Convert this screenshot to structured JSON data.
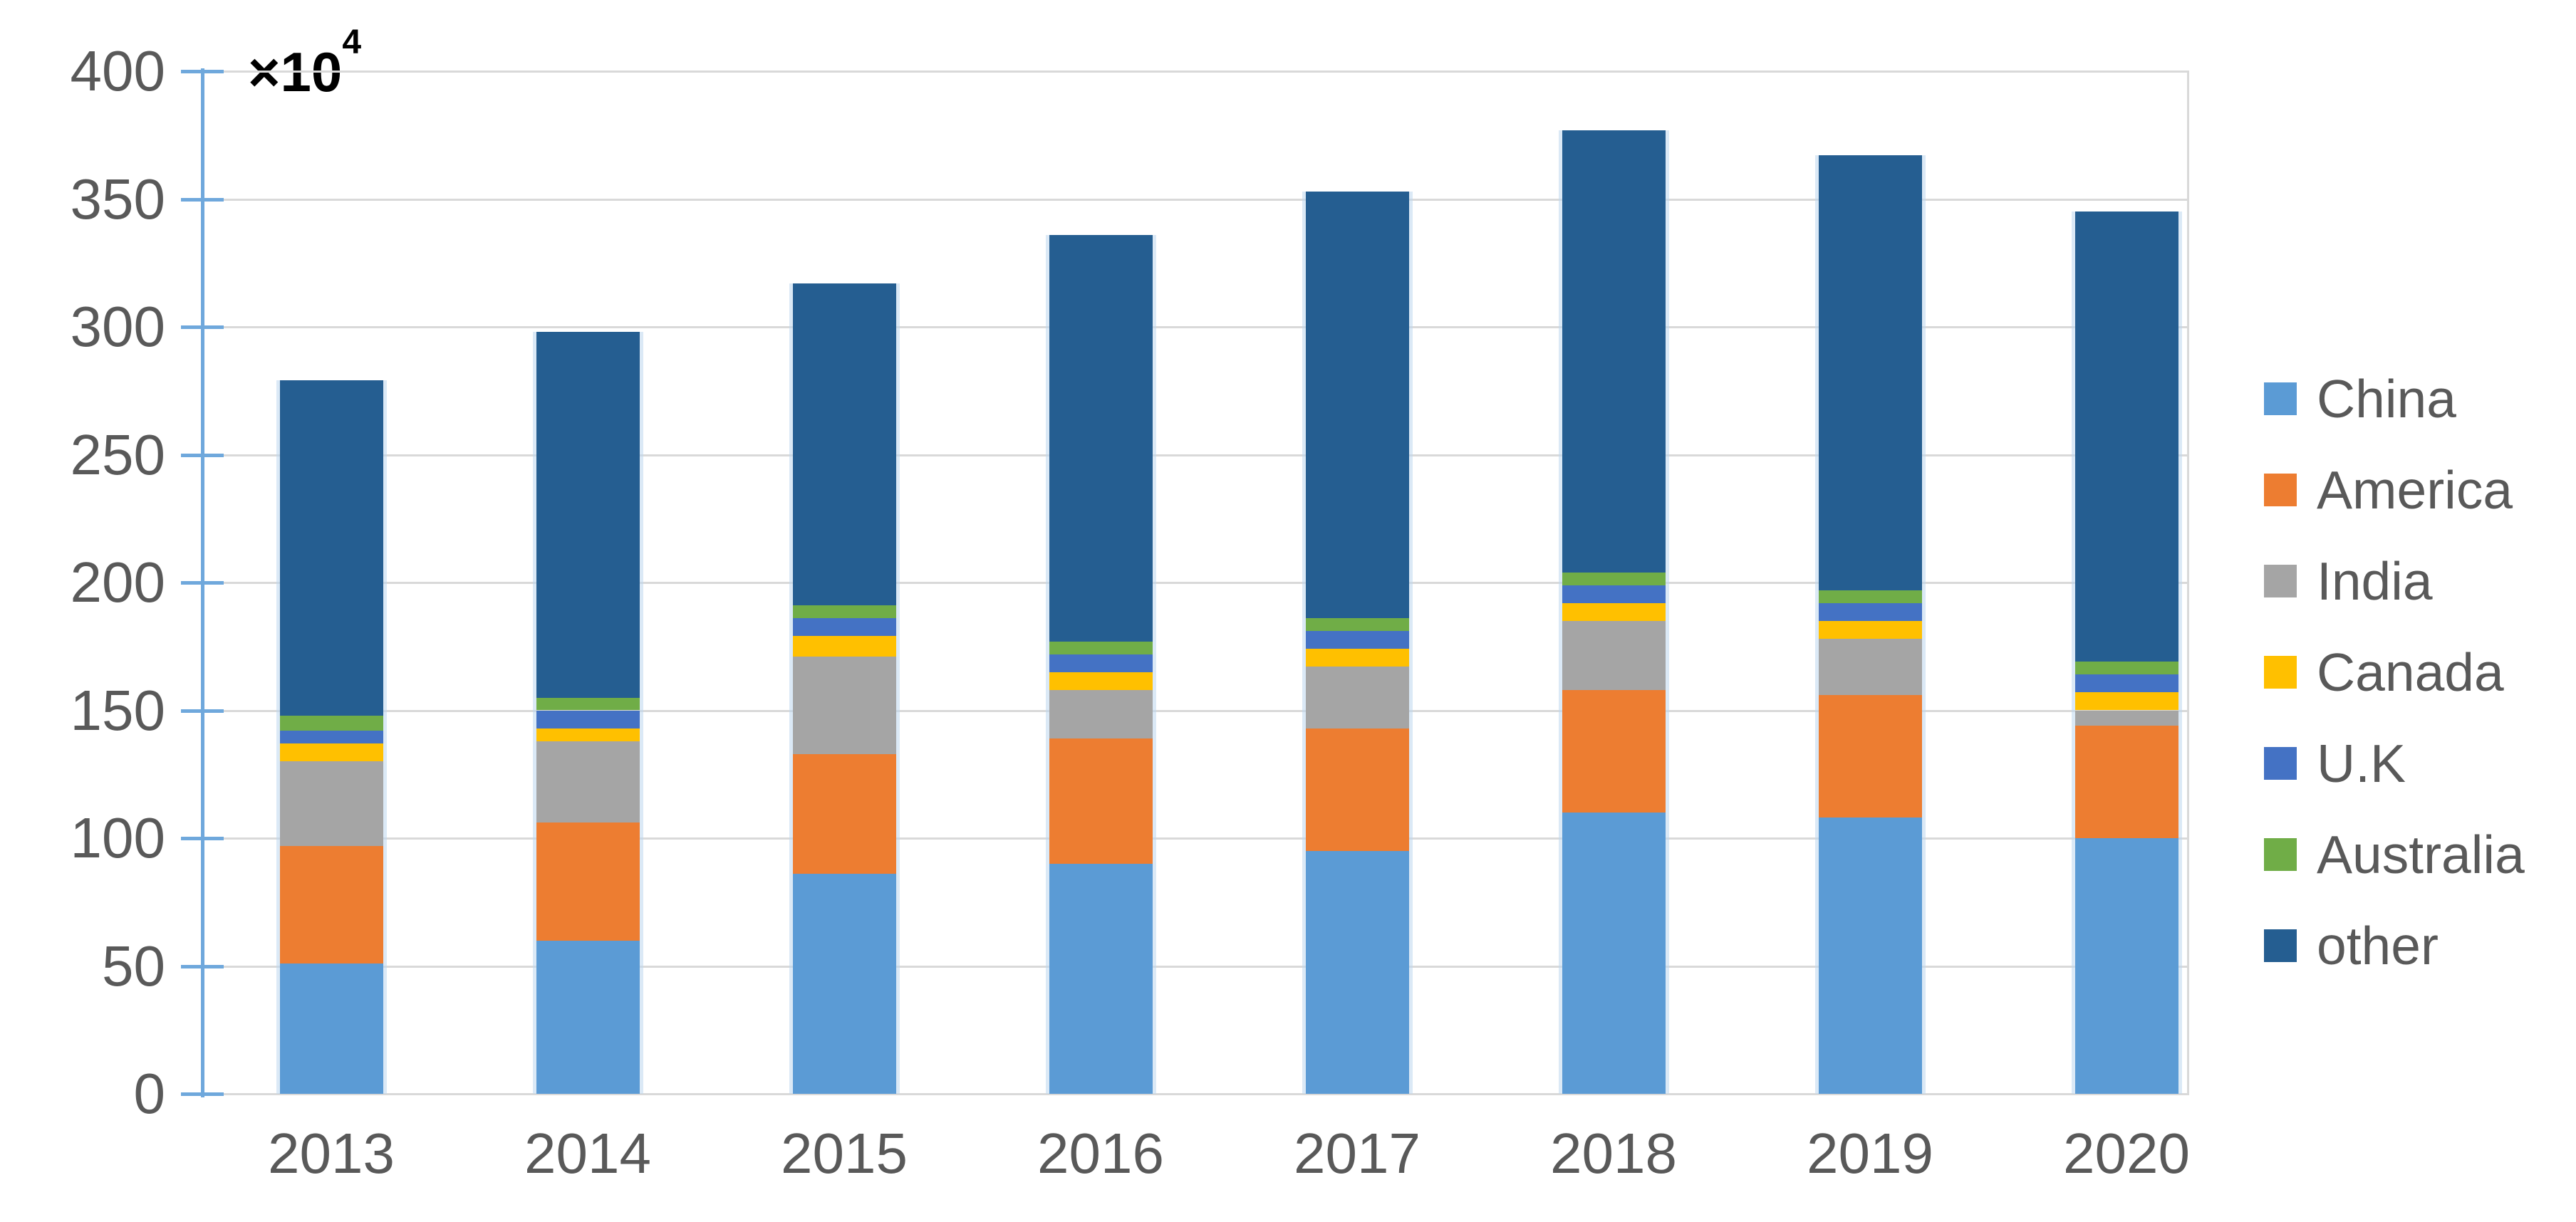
{
  "chart_data": {
    "type": "bar",
    "stacked": true,
    "title": "",
    "xlabel": "",
    "ylabel": "",
    "unit_note": "values are in units of 10^4",
    "categories": [
      "2013",
      "2014",
      "2015",
      "2016",
      "2017",
      "2018",
      "2019",
      "2020"
    ],
    "series": [
      {
        "name": "China",
        "color": "#5B9BD5",
        "values": [
          51,
          60,
          86,
          90,
          95,
          110,
          108,
          100
        ]
      },
      {
        "name": "America",
        "color": "#ED7D31",
        "values": [
          46,
          46,
          47,
          49,
          48,
          48,
          48,
          44
        ]
      },
      {
        "name": "India",
        "color": "#A5A5A5",
        "values": [
          33,
          32,
          38,
          19,
          24,
          27,
          22,
          6
        ]
      },
      {
        "name": "Canada",
        "color": "#FFC000",
        "values": [
          7,
          5,
          8,
          7,
          7,
          7,
          7,
          7
        ]
      },
      {
        "name": "U.K",
        "color": "#4472C4",
        "values": [
          5,
          7,
          7,
          7,
          7,
          7,
          7,
          7
        ]
      },
      {
        "name": "Australia",
        "color": "#70AD47",
        "values": [
          6,
          5,
          5,
          5,
          5,
          5,
          5,
          5
        ]
      },
      {
        "name": "other",
        "color": "#255E91",
        "values": [
          131,
          143,
          126,
          159,
          167,
          173,
          170,
          176
        ]
      }
    ],
    "stack_totals": [
      279,
      298,
      317,
      336,
      353,
      377,
      367,
      345
    ],
    "ylim": [
      0,
      400
    ],
    "ytick_step": 50,
    "ytick_labels": [
      "0",
      "50",
      "100",
      "150",
      "200",
      "250",
      "300",
      "350",
      "400"
    ],
    "axis_multiplier_base": "×10",
    "axis_multiplier_exponent": "4",
    "legend_position": "right",
    "legend_labels": [
      "China",
      "America",
      "India",
      "Canada",
      "U.K",
      "Australia",
      "other"
    ],
    "grid": true,
    "gridline_color": "#D9D9D9",
    "axis_line_color": "#6FA8DC",
    "tick_label_color": "#595959",
    "legend_label_color": "#595959",
    "background_color": "#FFFFFF"
  }
}
